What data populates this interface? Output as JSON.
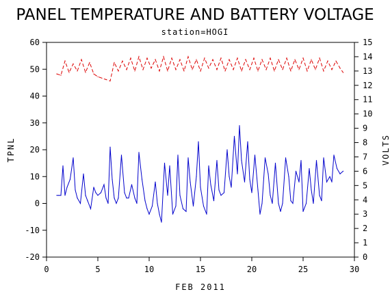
{
  "chart_data": {
    "type": "line",
    "title": "PANEL TEMPERATURE AND BATTERY VOLTAGE",
    "subtitle": "station=HOGI",
    "xlabel": "FEB 2011",
    "ylabel_left": "TPNL",
    "ylabel_right": "VOLTS",
    "xlim": [
      0,
      30
    ],
    "ylim_left": [
      -20,
      60
    ],
    "ylim_right": [
      0,
      15
    ],
    "x_ticks": [
      "0",
      "5",
      "10",
      "15",
      "20",
      "25",
      "30"
    ],
    "y_ticks_left": [
      "-20",
      "-10",
      "0",
      "10",
      "20",
      "30",
      "40",
      "50",
      "60"
    ],
    "y_ticks_right": [
      "0",
      "1",
      "2",
      "3",
      "4",
      "5",
      "6",
      "7",
      "8",
      "9",
      "10",
      "11",
      "12",
      "13",
      "14",
      "15"
    ],
    "series": [
      {
        "axis": "left",
        "color": "#0000cc",
        "x": [
          1.0,
          1.2,
          1.4,
          1.6,
          1.8,
          2.0,
          2.3,
          2.6,
          2.8,
          3.0,
          3.3,
          3.6,
          3.8,
          4.0,
          4.3,
          4.6,
          4.8,
          5.0,
          5.3,
          5.6,
          5.8,
          6.0,
          6.2,
          6.4,
          6.6,
          6.8,
          7.0,
          7.3,
          7.6,
          7.8,
          8.0,
          8.3,
          8.6,
          8.8,
          9.0,
          9.3,
          9.6,
          9.8,
          10.0,
          10.3,
          10.6,
          10.8,
          11.0,
          11.2,
          11.5,
          11.8,
          12.0,
          12.3,
          12.6,
          12.8,
          13.0,
          13.3,
          13.6,
          13.8,
          14.0,
          14.3,
          14.6,
          14.8,
          15.0,
          15.3,
          15.6,
          15.8,
          16.0,
          16.3,
          16.6,
          16.8,
          17.0,
          17.3,
          17.6,
          17.8,
          18.0,
          18.3,
          18.6,
          18.8,
          19.0,
          19.3,
          19.6,
          19.8,
          20.0,
          20.3,
          20.6,
          20.8,
          21.0,
          21.3,
          21.6,
          21.8,
          22.0,
          22.3,
          22.6,
          22.8,
          23.0,
          23.3,
          23.6,
          23.8,
          24.0,
          24.3,
          24.6,
          24.8,
          25.0,
          25.3,
          25.6,
          25.8,
          26.0,
          26.3,
          26.6,
          26.8,
          27.0,
          27.3,
          27.6,
          27.8,
          28.0,
          28.3,
          28.6,
          28.9
        ],
        "values": [
          3,
          3,
          3,
          14,
          3,
          6,
          9,
          17,
          5,
          2,
          0,
          11,
          3,
          1,
          -2,
          6,
          4,
          3,
          4,
          7,
          2,
          0,
          21,
          9,
          2,
          0,
          2,
          18,
          4,
          2,
          2,
          7,
          2,
          0,
          19,
          9,
          1,
          -2,
          -4,
          -1,
          8,
          0,
          -4,
          -7,
          15,
          3,
          14,
          -4,
          -1,
          18,
          3,
          -2,
          -3,
          17,
          8,
          -1,
          10,
          23,
          6,
          -1,
          -4,
          14,
          7,
          1,
          16,
          5,
          3,
          4,
          20,
          10,
          6,
          25,
          11,
          29,
          16,
          8,
          23,
          9,
          4,
          18,
          5,
          -4,
          0,
          17,
          11,
          3,
          0,
          15,
          0,
          -3,
          0,
          17,
          10,
          1,
          0,
          12,
          8,
          16,
          -3,
          0,
          13,
          5,
          0,
          16,
          3,
          1,
          17,
          8,
          10,
          8,
          18,
          13,
          11,
          12
        ]
      },
      {
        "axis": "right",
        "color": "#dd0000",
        "x": [
          1.0,
          1.4,
          1.8,
          2.2,
          2.6,
          3.0,
          3.4,
          3.8,
          4.2,
          4.6,
          5.0,
          5.4,
          5.8,
          6.2,
          6.6,
          7.0,
          7.4,
          7.8,
          8.2,
          8.6,
          9.0,
          9.4,
          9.8,
          10.2,
          10.6,
          11.0,
          11.4,
          11.8,
          12.2,
          12.6,
          13.0,
          13.4,
          13.8,
          14.2,
          14.6,
          15.0,
          15.4,
          15.8,
          16.2,
          16.6,
          17.0,
          17.4,
          17.8,
          18.2,
          18.6,
          19.0,
          19.4,
          19.8,
          20.2,
          20.6,
          21.0,
          21.4,
          21.8,
          22.2,
          22.6,
          23.0,
          23.4,
          23.8,
          24.2,
          24.6,
          25.0,
          25.4,
          25.8,
          26.2,
          26.6,
          27.0,
          27.4,
          27.8,
          28.2,
          28.6,
          28.9
        ],
        "values": [
          12.8,
          12.7,
          13.7,
          12.9,
          13.5,
          13.0,
          13.8,
          12.9,
          13.6,
          12.8,
          12.6,
          12.5,
          12.4,
          12.3,
          13.6,
          13.0,
          13.7,
          13.1,
          13.9,
          13.0,
          14.0,
          13.1,
          13.9,
          13.2,
          13.8,
          13.0,
          14.0,
          13.0,
          13.9,
          13.1,
          13.8,
          13.0,
          14.0,
          13.1,
          13.8,
          13.0,
          13.9,
          13.2,
          13.8,
          13.1,
          13.9,
          13.0,
          13.8,
          13.1,
          13.9,
          13.0,
          13.8,
          13.1,
          13.9,
          13.0,
          13.8,
          13.1,
          13.9,
          13.0,
          13.8,
          13.1,
          13.9,
          13.0,
          13.8,
          13.1,
          13.9,
          13.0,
          13.8,
          13.1,
          13.9,
          13.0,
          13.7,
          13.1,
          13.7,
          13.2,
          12.9
        ]
      }
    ]
  }
}
